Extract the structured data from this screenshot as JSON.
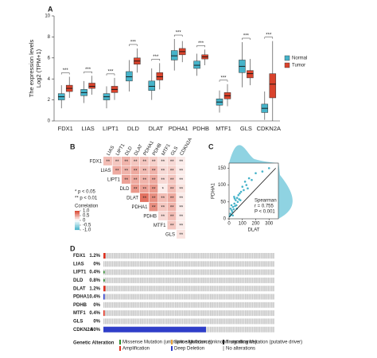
{
  "chart_data": [
    {
      "type": "box",
      "panel_label": "A",
      "ylabel": [
        "The expression levels",
        "Log2 (TPM+1)"
      ],
      "categories": [
        "FDX1",
        "LIAS",
        "LIPT1",
        "DLD",
        "DLAT",
        "PDHA1",
        "PDHB",
        "MTF1",
        "GLS",
        "CDKN2A"
      ],
      "annotations": [
        "***",
        "***",
        "***",
        "***",
        "***",
        "***",
        "***",
        "***",
        "***",
        "***"
      ],
      "ylim": [
        0,
        10
      ],
      "yticks": [
        0,
        2,
        4,
        6,
        8,
        10
      ],
      "legend": "right",
      "series": [
        {
          "name": "Normal",
          "color": "#46b3c9",
          "low": [
            1.2,
            1.7,
            1.2,
            2.8,
            2.0,
            4.8,
            4.3,
            0.8,
            3.2,
            0.1
          ],
          "q1": [
            2.0,
            2.4,
            2.0,
            3.8,
            2.9,
            5.8,
            5.0,
            1.5,
            4.6,
            0.8
          ],
          "median": [
            2.3,
            2.7,
            2.3,
            4.2,
            3.3,
            6.2,
            5.3,
            1.8,
            5.2,
            1.2
          ],
          "q3": [
            2.6,
            3.0,
            2.6,
            4.7,
            3.8,
            6.7,
            5.7,
            2.1,
            5.8,
            1.6
          ],
          "high": [
            3.4,
            3.8,
            3.3,
            5.8,
            5.0,
            7.8,
            6.4,
            2.9,
            7.5,
            2.8
          ]
        },
        {
          "name": "Tumor",
          "color": "#d9432c",
          "low": [
            2.2,
            2.5,
            2.0,
            4.6,
            3.0,
            5.6,
            5.3,
            1.4,
            3.4,
            0
          ],
          "q1": [
            2.8,
            3.1,
            2.7,
            5.4,
            3.9,
            6.3,
            5.9,
            2.1,
            4.1,
            2.2
          ],
          "median": [
            3.1,
            3.3,
            3.0,
            5.7,
            4.2,
            6.6,
            6.1,
            2.4,
            4.5,
            3.5
          ],
          "q3": [
            3.4,
            3.6,
            3.3,
            6.0,
            4.6,
            6.9,
            6.3,
            2.7,
            4.8,
            4.5
          ],
          "high": [
            4.2,
            4.3,
            4.1,
            6.9,
            5.5,
            7.6,
            6.8,
            3.5,
            5.9,
            7.6
          ]
        }
      ]
    },
    {
      "type": "heatmap",
      "panel_label": "B",
      "row_labels": [
        "FDX1",
        "LIAS",
        "LIPT1",
        "DLD",
        "DLAT",
        "PDHA1",
        "PDHB",
        "MTF1",
        "GLS"
      ],
      "col_labels": [
        "LIAS",
        "LIPT1",
        "DLD",
        "DLAT",
        "PDHA1",
        "PDHB",
        "MTF1",
        "GLS",
        "CDKN2A"
      ],
      "values": [
        [
          0.35,
          0.3,
          0.4,
          0.3,
          0.3,
          0.25,
          0.15,
          0.2,
          0.1
        ],
        [
          null,
          0.45,
          0.4,
          0.45,
          0.35,
          0.4,
          0.2,
          0.25,
          0.1
        ],
        [
          null,
          null,
          0.5,
          0.45,
          0.4,
          0.45,
          0.2,
          0.3,
          0.1
        ],
        [
          null,
          null,
          null,
          0.55,
          0.5,
          0.55,
          0.1,
          0.35,
          0.15
        ],
        [
          null,
          null,
          null,
          null,
          0.75,
          0.6,
          0.35,
          0.45,
          0.1
        ],
        [
          null,
          null,
          null,
          null,
          null,
          0.6,
          0.3,
          0.4,
          0.1
        ],
        [
          null,
          null,
          null,
          null,
          null,
          null,
          0.2,
          0.35,
          0.1
        ],
        [
          null,
          null,
          null,
          null,
          null,
          null,
          null,
          0.3,
          0.1
        ],
        [
          null,
          null,
          null,
          null,
          null,
          null,
          null,
          null,
          0.15
        ]
      ],
      "cell_labels": [
        [
          "**",
          "**",
          "**",
          "**",
          "**",
          "**",
          "**",
          "**",
          "**"
        ],
        [
          null,
          "**",
          "**",
          "**",
          "**",
          "**",
          "**",
          "**",
          "**"
        ],
        [
          null,
          null,
          "**",
          "**",
          "**",
          "**",
          "**",
          "**",
          "**"
        ],
        [
          null,
          null,
          null,
          "**",
          "**",
          "**",
          "*",
          "**",
          "**"
        ],
        [
          null,
          null,
          null,
          null,
          "**",
          "**",
          "**",
          "**",
          "**"
        ],
        [
          null,
          null,
          null,
          null,
          null,
          "**",
          "**",
          "**",
          "**"
        ],
        [
          null,
          null,
          null,
          null,
          null,
          null,
          "**",
          "**",
          "**"
        ],
        [
          null,
          null,
          null,
          null,
          null,
          null,
          null,
          "**",
          "**"
        ],
        [
          null,
          null,
          null,
          null,
          null,
          null,
          null,
          null,
          "**"
        ]
      ],
      "significance_notes": [
        "* p < 0.05",
        "** p < 0.01"
      ],
      "colorbar_title": "Correlation",
      "clim": [
        -1,
        1
      ],
      "colors": {
        "negative": "#46b3c9",
        "positive": "#d9432c"
      },
      "cticks": [
        {
          "value": 1,
          "label": "1.0"
        },
        {
          "value": 0.5,
          "label": "0.5"
        },
        0,
        {
          "value": -0.5,
          "label": "-0.5"
        },
        {
          "value": -1,
          "label": "-1.0"
        }
      ]
    },
    {
      "type": "scatter",
      "panel_label": "C",
      "xlabel": "DLAT",
      "ylabel": "PDHA1",
      "color": "#46b3c9",
      "line_color": "#111",
      "x": [
        5,
        10,
        15,
        20,
        25,
        30,
        35,
        40,
        45,
        50,
        55,
        60,
        65,
        70,
        75,
        80,
        90,
        100,
        110,
        120,
        130,
        150,
        170,
        200,
        250,
        300,
        12,
        28,
        42,
        58,
        18,
        38,
        85,
        140
      ],
      "y": [
        8,
        15,
        12,
        25,
        20,
        35,
        28,
        45,
        38,
        55,
        40,
        62,
        50,
        70,
        58,
        75,
        80,
        95,
        85,
        110,
        100,
        120,
        115,
        135,
        140,
        150,
        30,
        10,
        60,
        30,
        40,
        65,
        55,
        90
      ],
      "fit_line": {
        "x": [
          0,
          350
        ],
        "y": [
          5,
          150
        ]
      },
      "stats": [
        "Spearman",
        "r = 0.755",
        "P < 0.001"
      ],
      "xlim": [
        0,
        370
      ],
      "xticks": [
        0,
        100,
        200,
        300
      ],
      "ylim": [
        0,
        165
      ],
      "yticks": [
        0,
        50,
        100,
        150
      ]
    },
    {
      "type": "oncoprint",
      "panel_label": "D",
      "genes": [
        "FDX1",
        "LIAS",
        "LIPT1",
        "DLD",
        "DLAT",
        "PDHA1",
        "PDHB",
        "MTF1",
        "GLS",
        "CDKN2A"
      ],
      "values": [
        1.2,
        0,
        0.4,
        0.8,
        1.2,
        0.4,
        0,
        0.4,
        0,
        60
      ],
      "value_labels": [
        "1.2%",
        "0%",
        "0.4%",
        "0.8%",
        "1.2%",
        "0.4%",
        "0%",
        "0.4%",
        "0%",
        "60%"
      ],
      "alteration": [
        3,
        null,
        0,
        0,
        3,
        4,
        null,
        3,
        null,
        4
      ],
      "legend_title": "Genetic Alteration",
      "alterations": [
        {
          "name": "Missense Mutation (unknown significance)",
          "color": "#2e8b2e"
        },
        {
          "name": "Splice Mutation (unknown significance)",
          "color": "#e8a33c"
        },
        {
          "name": "Truncating Mutation (putative driver)",
          "color": "#222222"
        },
        {
          "name": "Amplification",
          "color": "#e0301e"
        },
        {
          "name": "Deep Deletion",
          "color": "#2f3ec9"
        },
        {
          "name": "No alterations",
          "color": "#c8c8c8"
        }
      ]
    }
  ]
}
